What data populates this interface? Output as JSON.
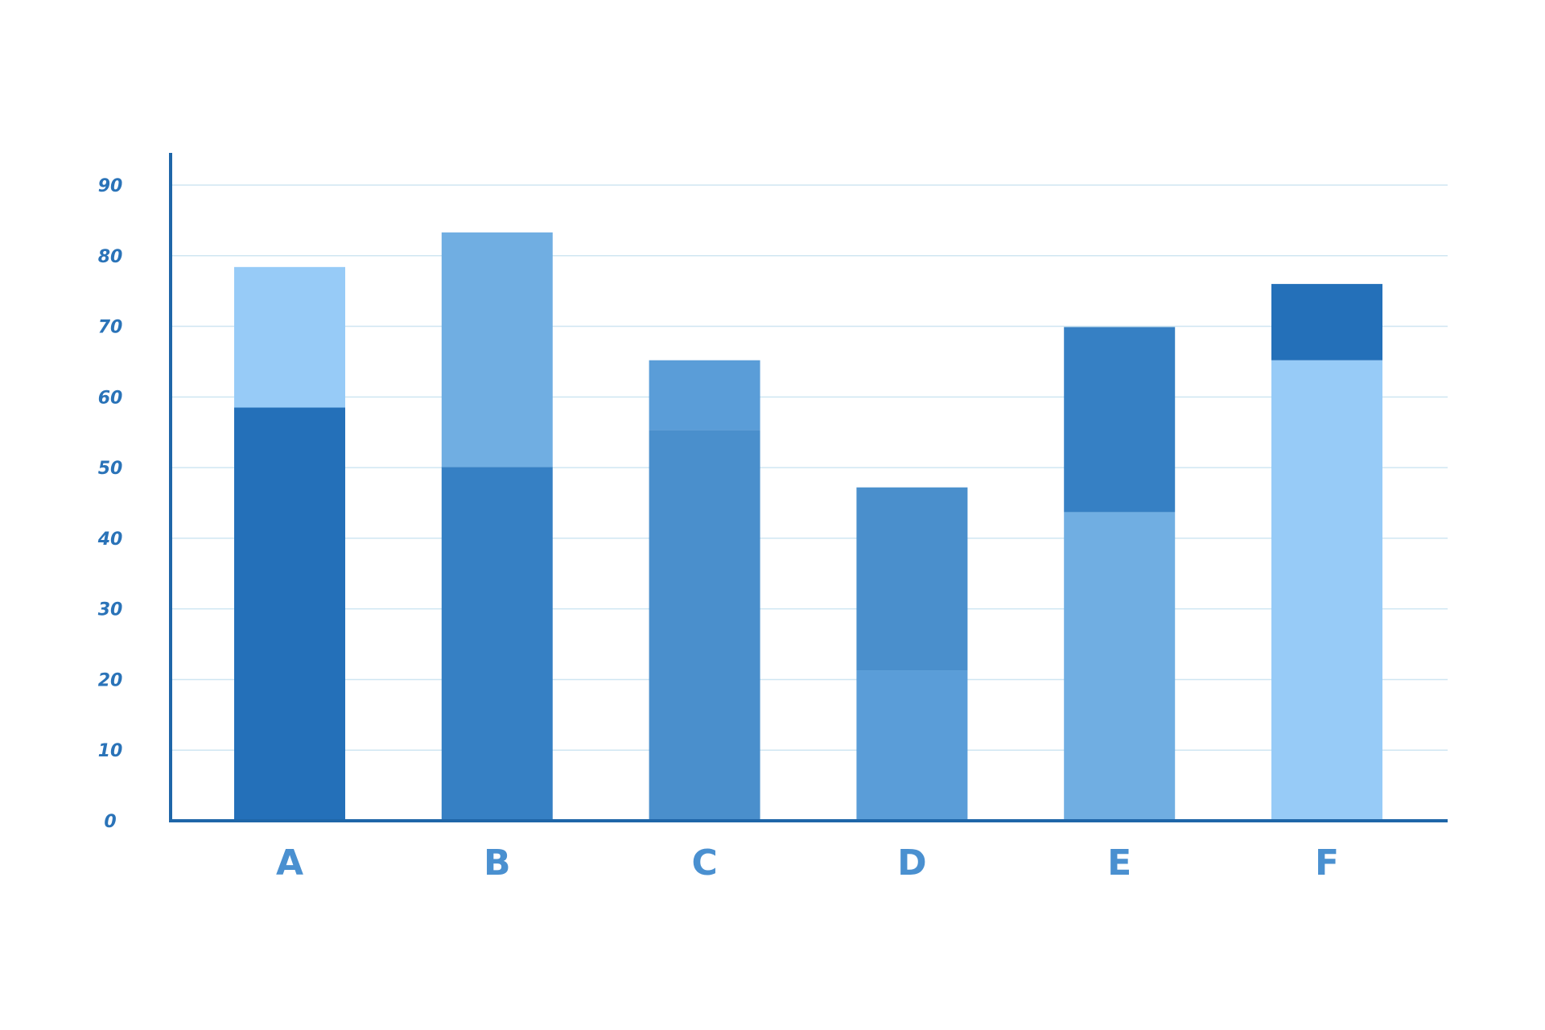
{
  "chart_data": {
    "type": "bar",
    "stacked": true,
    "title": "",
    "xlabel": "",
    "ylabel": "",
    "categories": [
      "A",
      "B",
      "C",
      "D",
      "E",
      "F"
    ],
    "ylim": [
      0,
      90
    ],
    "yticks": [
      0,
      10,
      20,
      30,
      40,
      50,
      60,
      70,
      80,
      90
    ],
    "grid": true,
    "series": [
      {
        "values": [
          58.5,
          50.1,
          55.3,
          21.3,
          43.7,
          65.2
        ],
        "colors": [
          "#2470b9",
          "#3680c4",
          "#4a8fcc",
          "#5a9dd8",
          "#70aee2",
          "#97cbf7"
        ]
      },
      {
        "values": [
          19.9,
          33.2,
          9.9,
          25.9,
          26.2,
          10.8
        ],
        "colors": [
          "#97cbf7",
          "#70aee2",
          "#5a9dd8",
          "#4a8fcc",
          "#3680c4",
          "#2470b9"
        ]
      }
    ],
    "colors": {
      "axis": "#1f66a8",
      "grid": "#cfe6f2",
      "tick_text": "#2a73b8",
      "category_text": "#4a90d0"
    }
  }
}
